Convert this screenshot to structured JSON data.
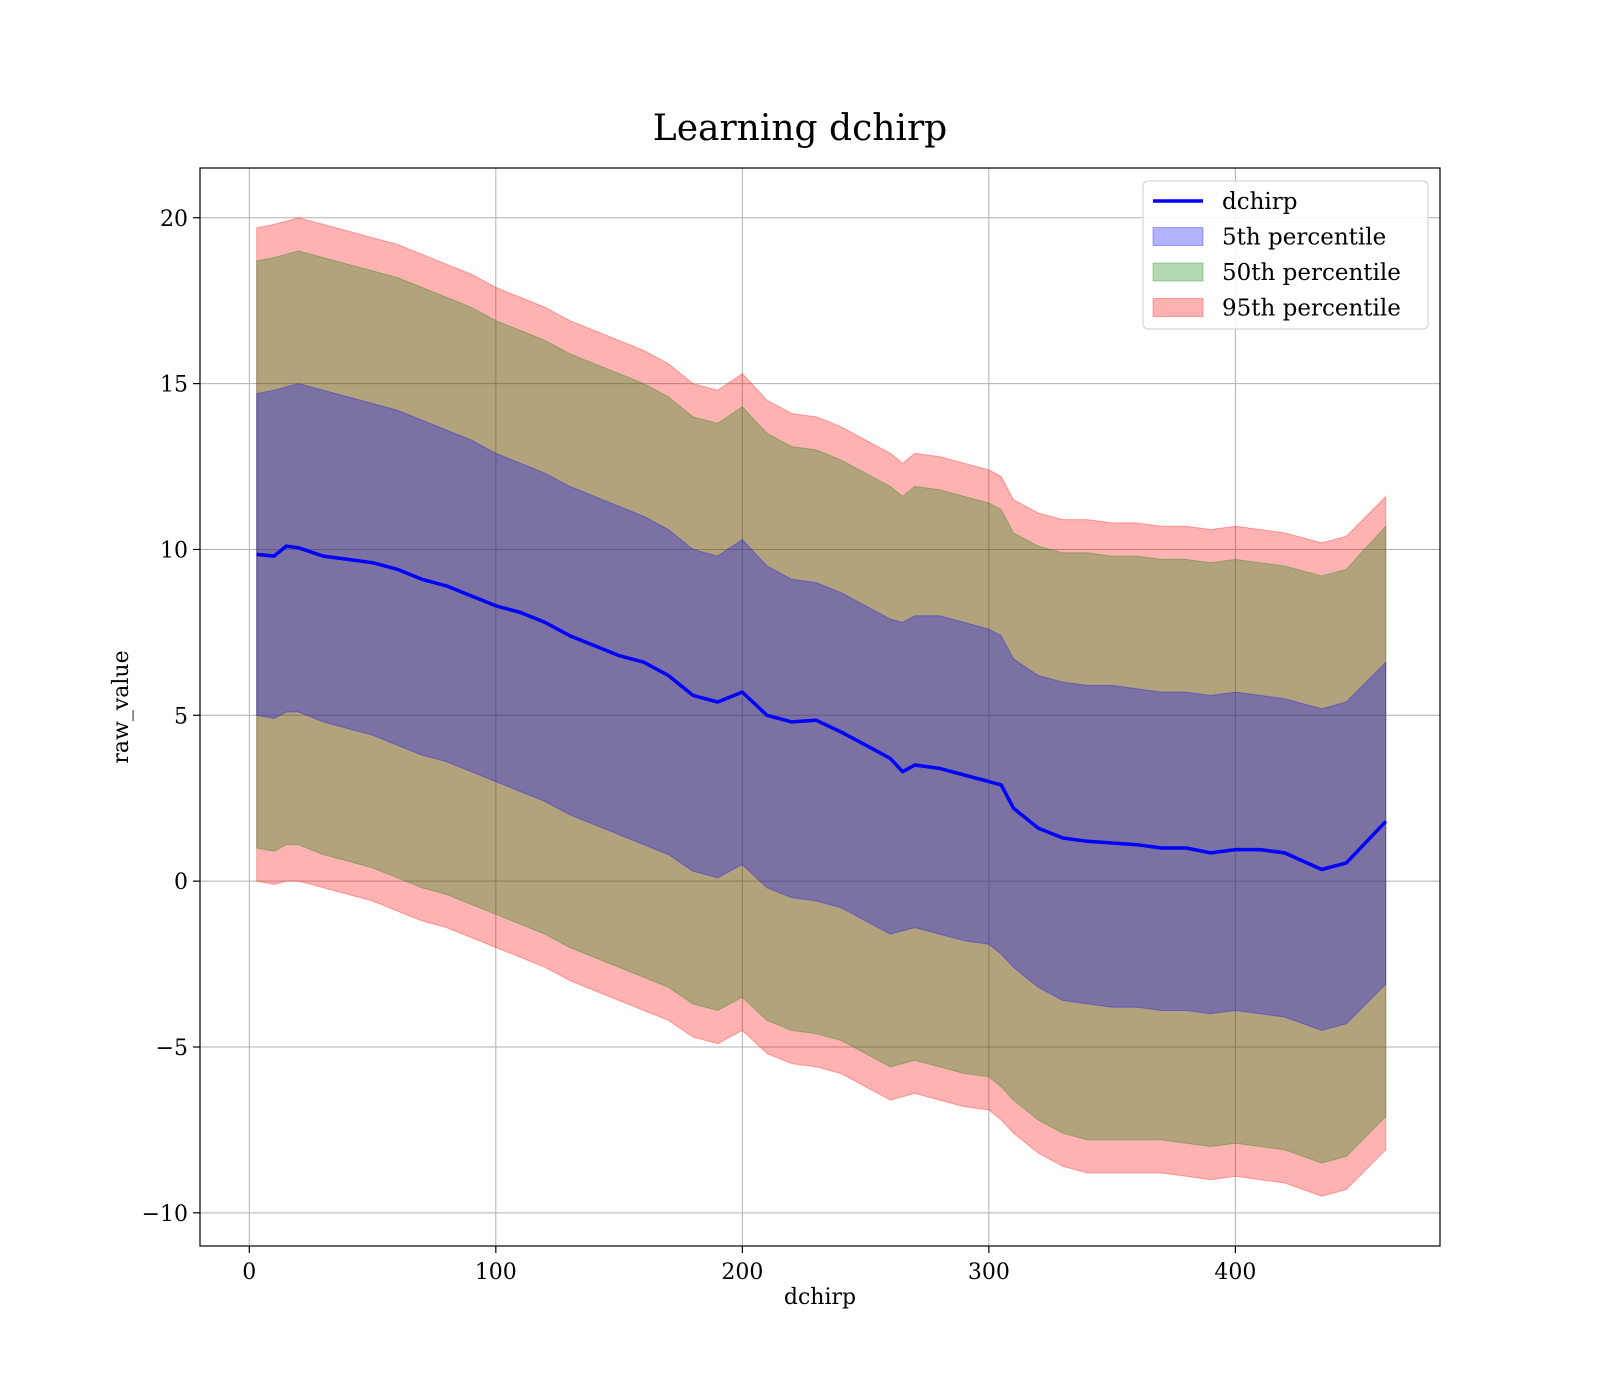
{
  "chart_data": {
    "type": "area",
    "title": "Learning dchirp",
    "xlabel": "dchirp",
    "ylabel": "raw_value",
    "xlim": [
      -20,
      483
    ],
    "ylim": [
      -11,
      21.5
    ],
    "xticks": [
      0,
      100,
      200,
      300,
      400
    ],
    "yticks": [
      -10,
      -5,
      0,
      5,
      10,
      15,
      20
    ],
    "ytick_labels": [
      "−10",
      "−5",
      "0",
      "5",
      "10",
      "15",
      "20"
    ],
    "grid": true,
    "legend_position": "top-right",
    "line": {
      "name": "dchirp",
      "color": "#0000ff",
      "x": [
        3,
        10,
        15,
        20,
        30,
        40,
        50,
        60,
        70,
        80,
        90,
        100,
        110,
        120,
        130,
        140,
        150,
        160,
        170,
        180,
        190,
        200,
        210,
        220,
        230,
        240,
        250,
        260,
        265,
        270,
        280,
        290,
        300,
        305,
        310,
        320,
        330,
        340,
        350,
        360,
        370,
        380,
        390,
        400,
        410,
        420,
        435,
        445,
        461
      ],
      "y": [
        9.85,
        9.8,
        10.1,
        10.05,
        9.8,
        9.7,
        9.6,
        9.4,
        9.1,
        8.9,
        8.6,
        8.3,
        8.1,
        7.8,
        7.4,
        7.1,
        6.8,
        6.6,
        6.2,
        5.6,
        5.4,
        5.7,
        5.0,
        4.8,
        4.85,
        4.5,
        4.1,
        3.7,
        3.3,
        3.5,
        3.4,
        3.2,
        3.0,
        2.9,
        2.2,
        1.6,
        1.3,
        1.2,
        1.15,
        1.1,
        1.0,
        1.0,
        0.85,
        0.95,
        0.95,
        0.85,
        0.35,
        0.55,
        1.8
      ]
    },
    "bands": [
      {
        "name": "95th percentile",
        "color": "#ff0000",
        "alpha": 0.3,
        "upper": [
          19.7,
          19.8,
          19.9,
          20.0,
          19.8,
          19.6,
          19.4,
          19.2,
          18.9,
          18.6,
          18.3,
          17.9,
          17.6,
          17.3,
          16.9,
          16.6,
          16.3,
          16.0,
          15.6,
          15.0,
          14.8,
          15.3,
          14.5,
          14.1,
          14.0,
          13.7,
          13.3,
          12.9,
          12.6,
          12.9,
          12.8,
          12.6,
          12.4,
          12.2,
          11.5,
          11.1,
          10.9,
          10.9,
          10.8,
          10.8,
          10.7,
          10.7,
          10.6,
          10.7,
          10.6,
          10.5,
          10.2,
          10.4,
          11.6
        ],
        "lower": [
          0.0,
          -0.1,
          0.0,
          0.0,
          -0.2,
          -0.4,
          -0.6,
          -0.9,
          -1.2,
          -1.4,
          -1.7,
          -2.0,
          -2.3,
          -2.6,
          -3.0,
          -3.3,
          -3.6,
          -3.9,
          -4.2,
          -4.7,
          -4.9,
          -4.5,
          -5.2,
          -5.5,
          -5.6,
          -5.8,
          -6.2,
          -6.6,
          -6.5,
          -6.4,
          -6.6,
          -6.8,
          -6.9,
          -7.2,
          -7.6,
          -8.2,
          -8.6,
          -8.8,
          -8.8,
          -8.8,
          -8.8,
          -8.9,
          -9.0,
          -8.9,
          -9.0,
          -9.1,
          -9.5,
          -9.3,
          -8.1
        ]
      },
      {
        "name": "50th percentile",
        "color": "#008000",
        "alpha": 0.3,
        "upper": [
          18.7,
          18.8,
          18.9,
          19.0,
          18.8,
          18.6,
          18.4,
          18.2,
          17.9,
          17.6,
          17.3,
          16.9,
          16.6,
          16.3,
          15.9,
          15.6,
          15.3,
          15.0,
          14.6,
          14.0,
          13.8,
          14.3,
          13.5,
          13.1,
          13.0,
          12.7,
          12.3,
          11.9,
          11.6,
          11.9,
          11.8,
          11.6,
          11.4,
          11.2,
          10.5,
          10.1,
          9.9,
          9.9,
          9.8,
          9.8,
          9.7,
          9.7,
          9.6,
          9.7,
          9.6,
          9.5,
          9.2,
          9.4,
          10.7
        ],
        "lower": [
          1.0,
          0.9,
          1.1,
          1.1,
          0.8,
          0.6,
          0.4,
          0.1,
          -0.2,
          -0.4,
          -0.7,
          -1.0,
          -1.3,
          -1.6,
          -2.0,
          -2.3,
          -2.6,
          -2.9,
          -3.2,
          -3.7,
          -3.9,
          -3.5,
          -4.2,
          -4.5,
          -4.6,
          -4.8,
          -5.2,
          -5.6,
          -5.5,
          -5.4,
          -5.6,
          -5.8,
          -5.9,
          -6.2,
          -6.6,
          -7.2,
          -7.6,
          -7.8,
          -7.8,
          -7.8,
          -7.8,
          -7.9,
          -8.0,
          -7.9,
          -8.0,
          -8.1,
          -8.5,
          -8.3,
          -7.1
        ]
      },
      {
        "name": "5th percentile",
        "color": "#0000ff",
        "alpha": 0.3,
        "upper": [
          14.7,
          14.8,
          14.9,
          15.0,
          14.8,
          14.6,
          14.4,
          14.2,
          13.9,
          13.6,
          13.3,
          12.9,
          12.6,
          12.3,
          11.9,
          11.6,
          11.3,
          11.0,
          10.6,
          10.0,
          9.8,
          10.3,
          9.5,
          9.1,
          9.0,
          8.7,
          8.3,
          7.9,
          7.8,
          8.0,
          8.0,
          7.8,
          7.6,
          7.4,
          6.7,
          6.2,
          6.0,
          5.9,
          5.9,
          5.8,
          5.7,
          5.7,
          5.6,
          5.7,
          5.6,
          5.5,
          5.2,
          5.4,
          6.6
        ],
        "lower": [
          5.0,
          4.9,
          5.1,
          5.1,
          4.8,
          4.6,
          4.4,
          4.1,
          3.8,
          3.6,
          3.3,
          3.0,
          2.7,
          2.4,
          2.0,
          1.7,
          1.4,
          1.1,
          0.8,
          0.3,
          0.1,
          0.5,
          -0.2,
          -0.5,
          -0.6,
          -0.8,
          -1.2,
          -1.6,
          -1.5,
          -1.4,
          -1.6,
          -1.8,
          -1.9,
          -2.2,
          -2.6,
          -3.2,
          -3.6,
          -3.7,
          -3.8,
          -3.8,
          -3.9,
          -3.9,
          -4.0,
          -3.9,
          -4.0,
          -4.1,
          -4.5,
          -4.3,
          -3.1
        ]
      }
    ],
    "legend": [
      {
        "label": "dchirp",
        "kind": "line",
        "color": "#0000ff"
      },
      {
        "label": "5th percentile",
        "kind": "patch",
        "color": "#0000ff"
      },
      {
        "label": "50th percentile",
        "kind": "patch",
        "color": "#008000"
      },
      {
        "label": "95th percentile",
        "kind": "patch",
        "color": "#ff0000"
      }
    ]
  }
}
